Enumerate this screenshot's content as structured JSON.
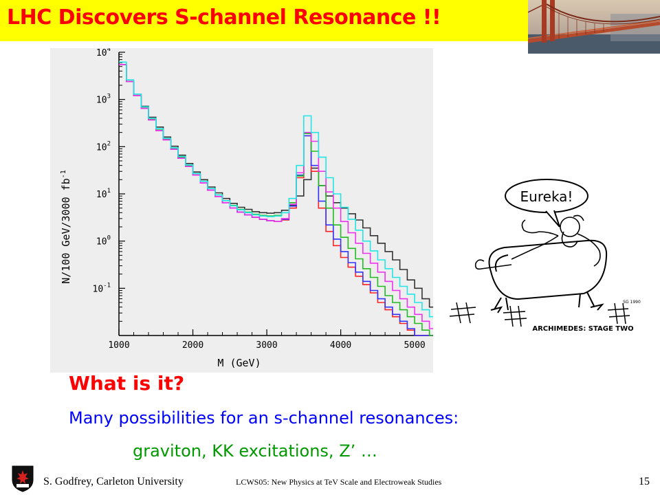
{
  "slide": {
    "title": "LHC Discovers  S-channel Resonance !!",
    "headline": "What is it?",
    "line1": "Many possibilities for an s-channel resonances:",
    "line2": "graviton, KK excitations, Z’ …"
  },
  "cartoon": {
    "speech": "Eureka!",
    "caption": "ARCHIMEDES: STAGE TWO",
    "signature": "SG 1990"
  },
  "footer": {
    "author": "S. Godfrey, Carleton University",
    "conference": "LCWS05: New Physics at TeV Scale and Electroweak Studies",
    "page": "15"
  },
  "colors": {
    "title_bg": "#ffff00",
    "title_text": "#ff0000",
    "headline": "#ff0000",
    "line1": "#0000ff",
    "line2": "#009900",
    "plot_bg": "#eeeeee"
  },
  "chart_data": {
    "type": "line",
    "style": "step histogram",
    "xlabel": "M (GeV)",
    "ylabel": "N/100 GeV/3000 fb",
    "ylabel_exp": "-1",
    "x_ticks": [
      "1000",
      "2000",
      "3000",
      "4000",
      "5000"
    ],
    "x_tick_values": [
      1000,
      2000,
      3000,
      4000,
      5000
    ],
    "y_ticks": [
      {
        "base": "10",
        "exp": "4",
        "value": 10000
      },
      {
        "base": "10",
        "exp": "3",
        "value": 1000
      },
      {
        "base": "10",
        "exp": "2",
        "value": 100
      },
      {
        "base": "10",
        "exp": "1",
        "value": 10
      },
      {
        "base": "10",
        "exp": "0",
        "value": 1
      },
      {
        "base": "10",
        "exp": "-1",
        "value": 0.1
      }
    ],
    "xlim": [
      1000,
      5250
    ],
    "ylim_log10": [
      -2,
      4
    ],
    "y_scale": "log",
    "bin_width": 100,
    "bin_edges_start": 1000,
    "series": [
      {
        "color": "#333333",
        "values": [
          5500,
          2400,
          1300,
          720,
          420,
          260,
          160,
          102,
          66,
          44,
          29,
          20,
          14,
          10.5,
          8,
          6.3,
          5.2,
          4.7,
          4.2,
          4,
          3.9,
          4,
          4.5,
          5.8,
          9,
          20,
          35,
          15,
          9,
          6.5,
          5,
          3.8,
          2.8,
          1.9,
          1.3,
          0.9,
          0.6,
          0.4,
          0.25,
          0.15,
          0.1,
          0.06,
          0.04
        ]
      },
      {
        "color": "#ff2222",
        "values": [
          5500,
          2400,
          1200,
          650,
          370,
          220,
          140,
          88,
          57,
          38,
          25,
          17,
          12,
          8.8,
          6.5,
          5,
          4.1,
          3.6,
          3.2,
          2.9,
          2.7,
          2.6,
          2.8,
          5,
          22,
          170,
          30,
          5,
          1.6,
          0.8,
          0.45,
          0.28,
          0.18,
          0.12,
          0.08,
          0.05,
          0.035,
          0.025,
          0.018,
          0.013,
          0.01,
          0.008,
          0.006
        ]
      },
      {
        "color": "#3333ff",
        "values": [
          5500,
          2400,
          1200,
          650,
          370,
          220,
          140,
          88,
          57,
          38,
          25,
          17,
          12,
          8.8,
          6.5,
          5,
          4.1,
          3.6,
          3.2,
          2.9,
          2.7,
          2.6,
          2.9,
          5.5,
          25,
          170,
          40,
          7,
          2.2,
          1.1,
          0.6,
          0.35,
          0.22,
          0.14,
          0.09,
          0.06,
          0.04,
          0.028,
          0.02,
          0.014,
          0.01,
          0.008,
          0.006
        ]
      },
      {
        "color": "#22bb22",
        "values": [
          5500,
          2400,
          1200,
          660,
          380,
          225,
          145,
          92,
          60,
          40,
          27,
          18.5,
          13,
          9.5,
          7.2,
          5.7,
          4.7,
          4.1,
          3.7,
          3.5,
          3.4,
          3.5,
          4,
          6.5,
          24,
          190,
          80,
          15,
          5,
          2.2,
          1.2,
          0.7,
          0.42,
          0.26,
          0.17,
          0.11,
          0.07,
          0.05,
          0.035,
          0.025,
          0.018,
          0.013,
          0.01
        ]
      },
      {
        "color": "#ee33ee",
        "values": [
          5500,
          2400,
          1200,
          650,
          370,
          220,
          140,
          88,
          57,
          38,
          25,
          17,
          12,
          8.8,
          6.5,
          5,
          4.1,
          3.6,
          3.2,
          2.9,
          2.7,
          2.6,
          3,
          6,
          28,
          200,
          130,
          30,
          11,
          5,
          2.6,
          1.5,
          0.9,
          0.55,
          0.34,
          0.22,
          0.14,
          0.09,
          0.06,
          0.04,
          0.028,
          0.02,
          0.014
        ]
      },
      {
        "color": "#22e5e5",
        "values": [
          6200,
          2600,
          1300,
          700,
          400,
          240,
          150,
          95,
          62,
          41,
          27,
          18.5,
          13,
          9.5,
          7.2,
          5.6,
          4.6,
          4,
          3.6,
          3.4,
          3.3,
          3.4,
          4,
          8,
          40,
          450,
          200,
          60,
          22,
          10,
          5.2,
          2.9,
          1.7,
          1,
          0.62,
          0.4,
          0.26,
          0.17,
          0.11,
          0.075,
          0.05,
          0.035,
          0.025
        ]
      }
    ],
    "grid": false,
    "legend": "none"
  }
}
